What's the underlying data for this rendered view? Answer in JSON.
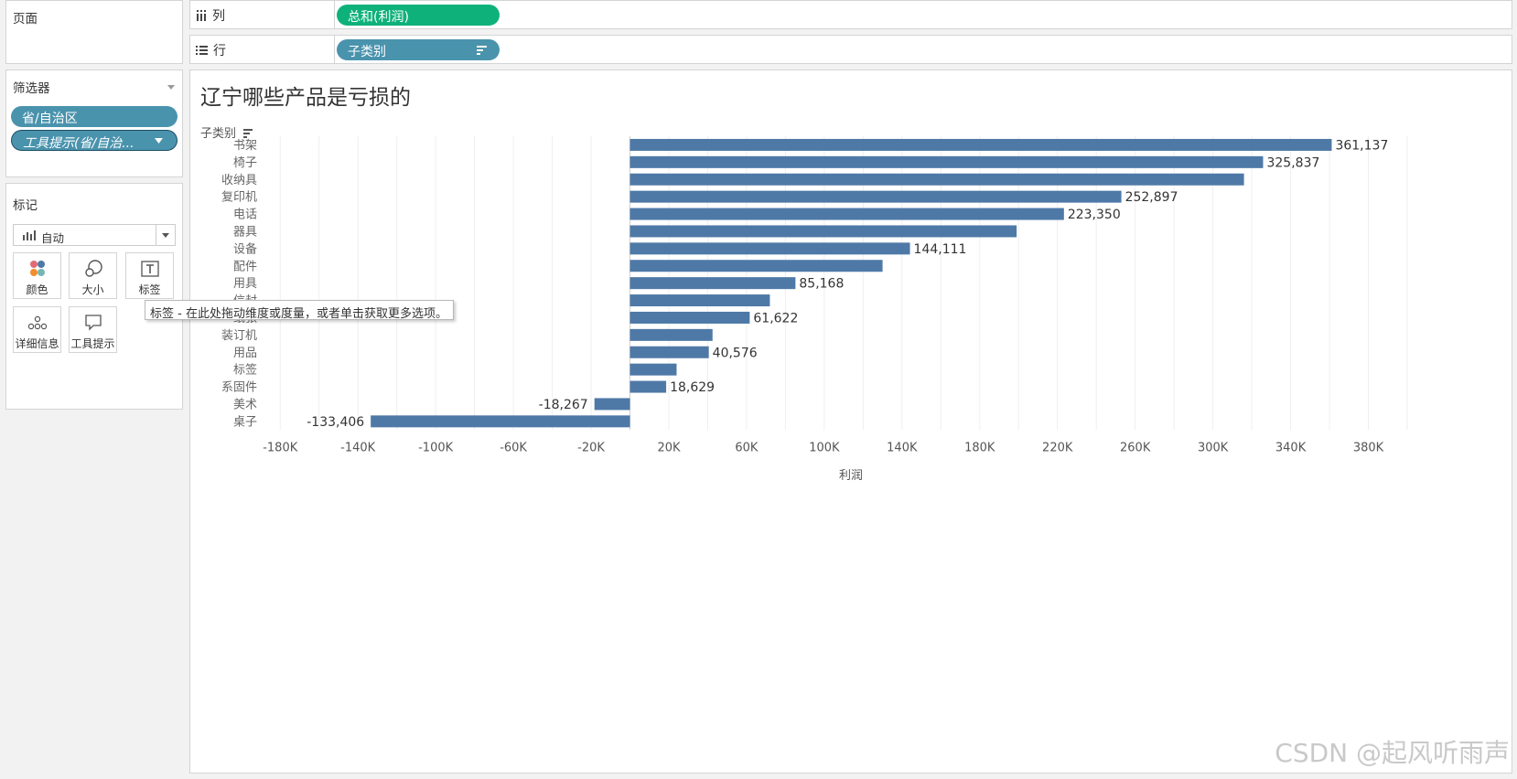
{
  "pages_panel": {
    "title": "页面"
  },
  "columns_shelf": {
    "label": "列",
    "icon": "columns-icon",
    "pill": "总和(利润)"
  },
  "rows_shelf": {
    "label": "行",
    "icon": "rows-icon",
    "pill": "子类别",
    "pill_icon": "sort-icon"
  },
  "filters_panel": {
    "title": "筛选器",
    "pills": [
      "省/自治区",
      "工具提示(省/自治..."
    ]
  },
  "marks_panel": {
    "title": "标记",
    "mark_type": "自动",
    "cards": [
      {
        "label": "颜色",
        "icon": "color-icon"
      },
      {
        "label": "大小",
        "icon": "size-icon"
      },
      {
        "label": "标签",
        "icon": "label-icon"
      },
      {
        "label": "详细信息",
        "icon": "detail-icon"
      },
      {
        "label": "工具提示",
        "icon": "tooltip-icon"
      }
    ]
  },
  "tooltip": {
    "text": "标签 - 在此处拖动维度或度量，或者单击获取更多选项。"
  },
  "chart_data": {
    "type": "bar",
    "orientation": "horizontal",
    "title": "辽宁哪些产品是亏损的",
    "ylabel": "子类别",
    "xlabel": "利润",
    "bar_color": "#4e79a7",
    "categories": [
      "书架",
      "椅子",
      "收纳具",
      "复印机",
      "电话",
      "器具",
      "设备",
      "配件",
      "用具",
      "信封",
      "纸张",
      "装订机",
      "用品",
      "标签",
      "系固件",
      "美术",
      "桌子"
    ],
    "values": [
      361137,
      325837,
      316000,
      252897,
      223350,
      199000,
      144111,
      130000,
      85168,
      72000,
      61622,
      42500,
      40576,
      24000,
      18629,
      -18267,
      -133406
    ],
    "data_labels": [
      "361,137",
      "325,837",
      "",
      "252,897",
      "223,350",
      "",
      "144,111",
      "",
      "85,168",
      "",
      "61,622",
      "",
      "40,576",
      "",
      "18,629",
      "-18,267",
      "-133,406"
    ],
    "xlim": [
      -190000,
      400000
    ],
    "x_ticks": [
      -180000,
      -140000,
      -100000,
      -60000,
      -20000,
      20000,
      60000,
      100000,
      140000,
      180000,
      220000,
      260000,
      300000,
      340000,
      380000
    ],
    "x_tick_labels": [
      "-180K",
      "-140K",
      "-100K",
      "-60K",
      "-20K",
      "20K",
      "60K",
      "100K",
      "140K",
      "180K",
      "220K",
      "260K",
      "300K",
      "340K",
      "380K"
    ]
  },
  "colors": {
    "green_pill": "#0fb17b",
    "blue_pill": "#4a93ad",
    "bar": "#4e79a7"
  },
  "watermark": "CSDN @起风听雨声"
}
